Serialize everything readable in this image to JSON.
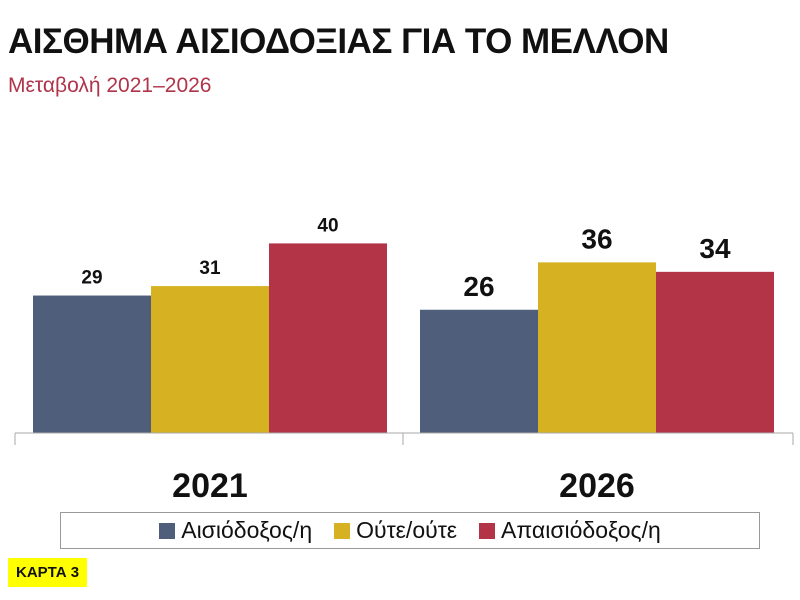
{
  "chart_data": {
    "type": "bar",
    "title": "ΑΙΣΘΗΜΑ ΑΙΣΙΟΔΟΞΙΑΣ ΓΙΑ ΤΟ ΜΕΛΛΟΝ",
    "subtitle": "Μεταβολή 2021–2026",
    "categories": [
      "2021",
      "2026"
    ],
    "series": [
      {
        "name": "Αισιόδοξος/η",
        "color": "#4f5e7b",
        "values": [
          29,
          26
        ]
      },
      {
        "name": "Ούτε/ούτε",
        "color": "#d6b222",
        "values": [
          31,
          36
        ]
      },
      {
        "name": "Απαισιόδοξος/η",
        "color": "#b23446",
        "values": [
          40,
          34
        ]
      }
    ],
    "ylim": [
      0,
      45
    ],
    "grid": false,
    "legend_position": "bottom"
  },
  "badge": "ΚΑΡΤΑ 3"
}
